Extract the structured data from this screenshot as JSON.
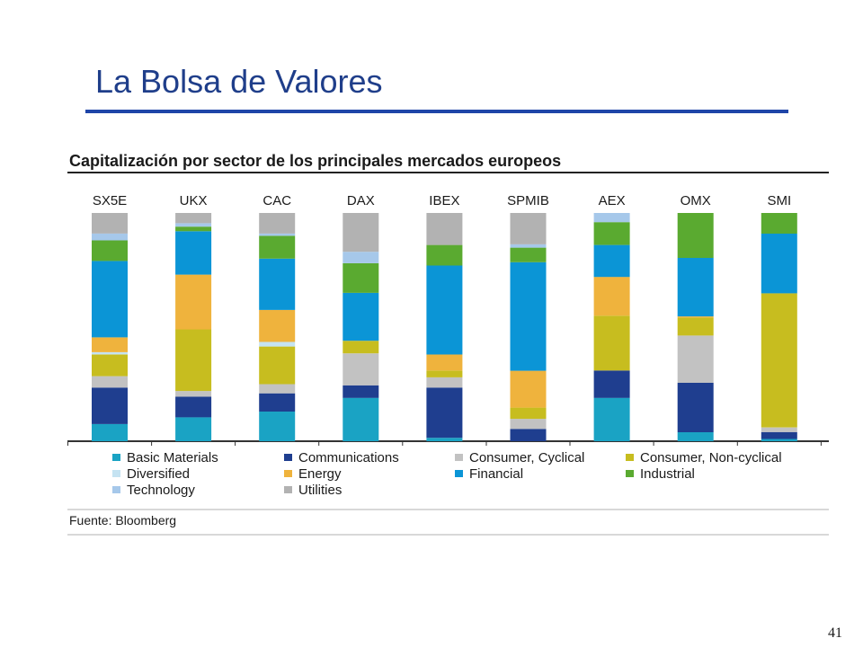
{
  "slide": {
    "title": "La Bolsa de Valores",
    "page_number": "41",
    "accent_color": "#1f45a8"
  },
  "source": "Fuente: Bloomberg",
  "chart_data": {
    "type": "bar",
    "stacked": true,
    "percent_stacked": true,
    "title": "Capitalización por sector de los principales mercados europeos",
    "xlabel": "",
    "ylabel": "",
    "ylim": [
      0,
      100
    ],
    "grid": false,
    "legend_position": "bottom",
    "categories": [
      "SX5E",
      "UKX",
      "CAC",
      "DAX",
      "IBEX",
      "SPMIB",
      "AEX",
      "OMX",
      "SMI"
    ],
    "series": [
      {
        "name": "Basic Materials",
        "color": "#1aa3c4",
        "values": [
          7.5,
          10.5,
          13,
          19,
          1.5,
          0,
          19,
          4,
          1
        ]
      },
      {
        "name": "Communications",
        "color": "#1f3e8f",
        "values": [
          16,
          9,
          8,
          5.5,
          22,
          5.5,
          12,
          22,
          3
        ]
      },
      {
        "name": "Consumer, Cyclical",
        "color": "#c2c2c2",
        "values": [
          5,
          2.5,
          4,
          14,
          4.5,
          4.5,
          0,
          21,
          2
        ]
      },
      {
        "name": "Consumer, Non-cyclical",
        "color": "#c7bd1f",
        "values": [
          9.5,
          27,
          16.5,
          5.5,
          3,
          5,
          24,
          8,
          58.5
        ]
      },
      {
        "name": "Diversified",
        "color": "#c5e3f2",
        "values": [
          1,
          0,
          2,
          0,
          0,
          0,
          0,
          0,
          0
        ]
      },
      {
        "name": "Energy",
        "color": "#efb33d",
        "values": [
          6.5,
          24,
          14,
          0,
          7,
          16.5,
          17,
          0.5,
          0
        ]
      },
      {
        "name": "Financial",
        "color": "#0b95d6",
        "values": [
          33.5,
          19,
          22.5,
          21,
          39,
          48.5,
          14,
          26,
          26
        ]
      },
      {
        "name": "Industrial",
        "color": "#5aaa30",
        "values": [
          9,
          2,
          10,
          13,
          9,
          6.5,
          10,
          20,
          9
        ]
      },
      {
        "name": "Technology",
        "color": "#a6c8ea",
        "values": [
          3,
          1.5,
          1,
          5,
          0,
          1.5,
          4,
          0,
          0
        ]
      },
      {
        "name": "Utilities",
        "color": "#b2b2b2",
        "values": [
          9,
          4.5,
          9,
          17,
          14,
          14,
          0,
          0,
          0
        ]
      }
    ]
  }
}
